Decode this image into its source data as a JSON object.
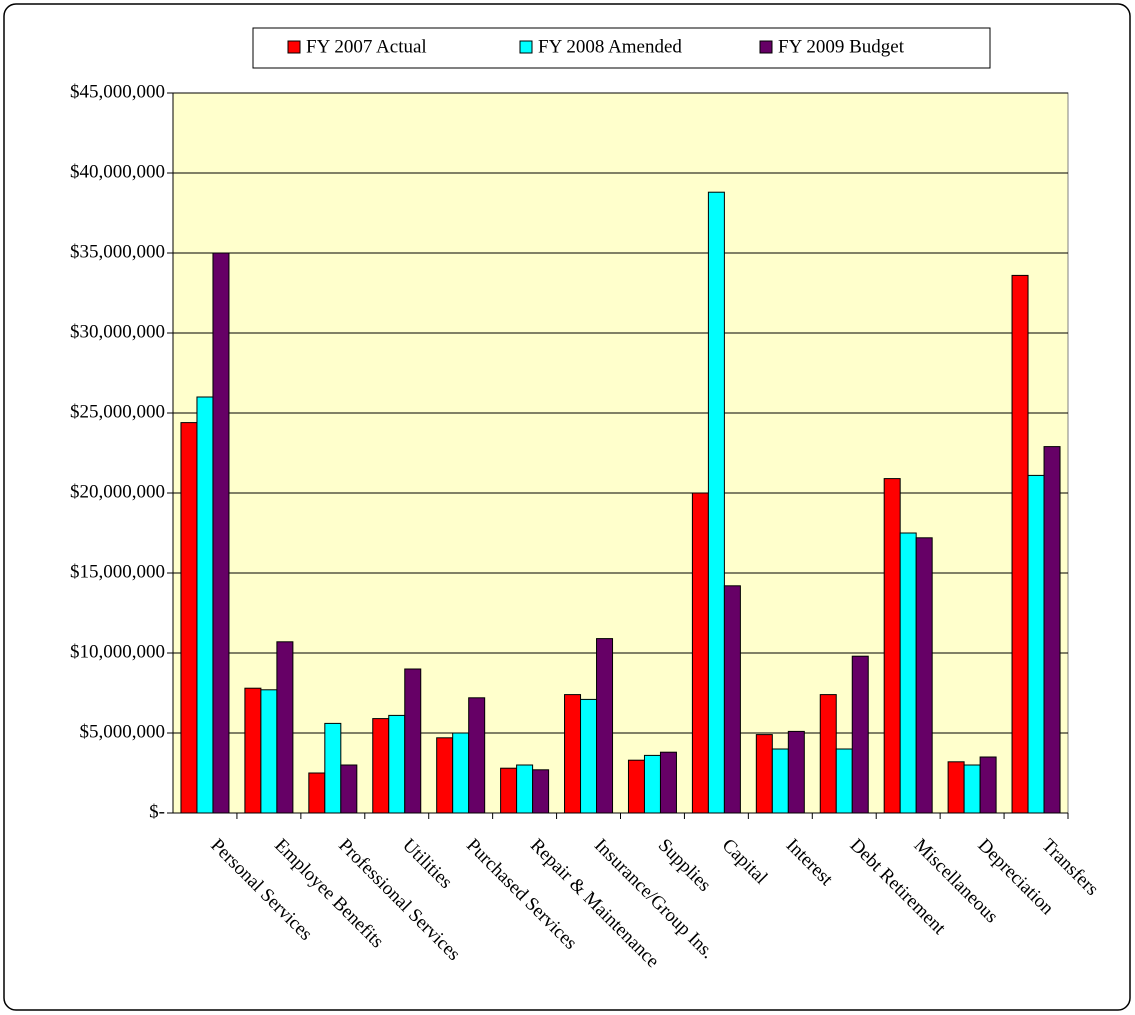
{
  "chart_data": {
    "type": "bar",
    "categories": [
      "Personal Services",
      "Employee Benefits",
      "Professional Services",
      "Utilities",
      "Purchased Services",
      "Repair & Maintenance",
      "Insurance/Group Ins.",
      "Supplies",
      "Capital",
      "Interest",
      "Debt Retirement",
      "Miscellaneous",
      "Depreciation",
      "Transfers"
    ],
    "series": [
      {
        "name": "FY 2007 Actual",
        "color": "#ff0000",
        "values": [
          24400000,
          7800000,
          2500000,
          5900000,
          4700000,
          2800000,
          7400000,
          3300000,
          20000000,
          4900000,
          7400000,
          20900000,
          3200000,
          33600000
        ]
      },
      {
        "name": "FY 2008 Amended",
        "color": "#00ffff",
        "values": [
          26000000,
          7700000,
          5600000,
          6100000,
          5000000,
          3000000,
          7100000,
          3600000,
          38800000,
          4000000,
          4000000,
          17500000,
          3000000,
          21100000
        ]
      },
      {
        "name": "FY 2009 Budget",
        "color": "#660066",
        "values": [
          35000000,
          10700000,
          3000000,
          9000000,
          7200000,
          2700000,
          10900000,
          3800000,
          14200000,
          5100000,
          9800000,
          17200000,
          3500000,
          22900000
        ]
      }
    ],
    "ylim": [
      0,
      45000000
    ],
    "yticks": [
      {
        "value": 0,
        "label": "$-"
      },
      {
        "value": 5000000,
        "label": "$5,000,000"
      },
      {
        "value": 10000000,
        "label": "$10,000,000"
      },
      {
        "value": 15000000,
        "label": "$15,000,000"
      },
      {
        "value": 20000000,
        "label": "$20,000,000"
      },
      {
        "value": 25000000,
        "label": "$25,000,000"
      },
      {
        "value": 30000000,
        "label": "$30,000,000"
      },
      {
        "value": 35000000,
        "label": "$35,000,000"
      },
      {
        "value": 40000000,
        "label": "$40,000,000"
      },
      {
        "value": 45000000,
        "label": "$45,000,000"
      }
    ],
    "grid": true,
    "legend": "top"
  }
}
